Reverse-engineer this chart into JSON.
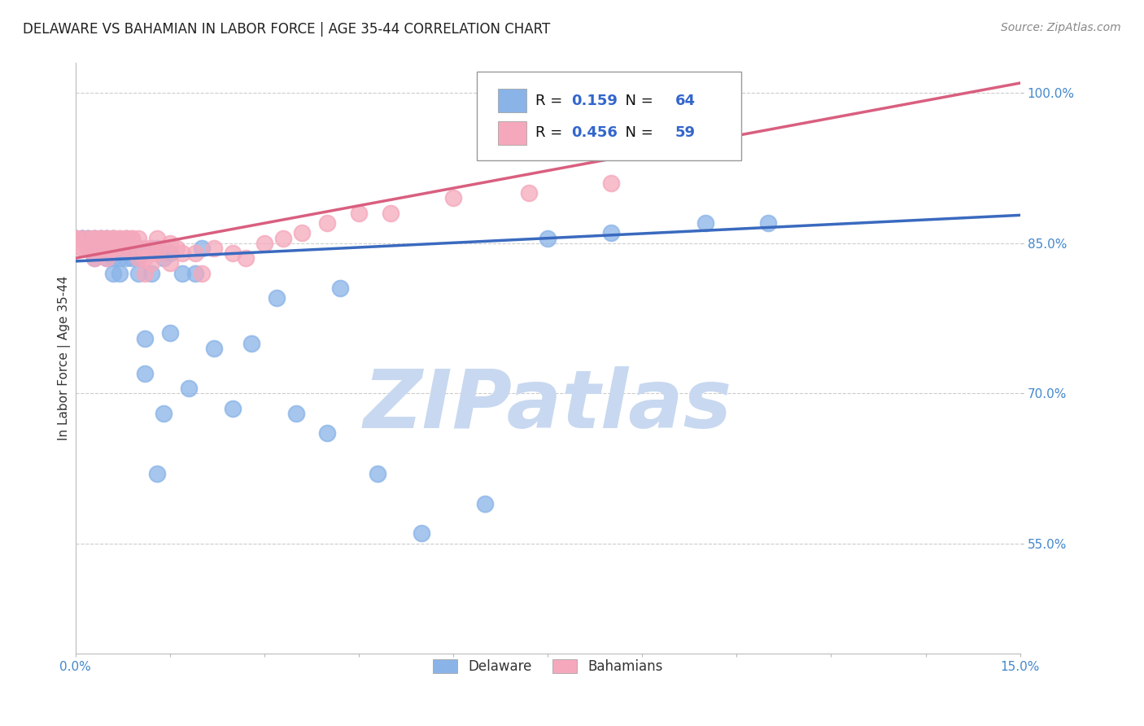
{
  "title": "DELAWARE VS BAHAMIAN IN LABOR FORCE | AGE 35-44 CORRELATION CHART",
  "source_text": "Source: ZipAtlas.com",
  "ylabel": "In Labor Force | Age 35-44",
  "xlim": [
    0.0,
    0.15
  ],
  "ylim": [
    0.44,
    1.03
  ],
  "xticks": [
    0.0,
    0.015,
    0.03,
    0.045,
    0.06,
    0.075,
    0.09,
    0.105,
    0.12,
    0.135,
    0.15
  ],
  "xticklabels": [
    "0.0%",
    "",
    "",
    "",
    "",
    "",
    "",
    "",
    "",
    "",
    "15.0%"
  ],
  "yticks": [
    0.55,
    0.7,
    0.85,
    1.0
  ],
  "yticklabels": [
    "55.0%",
    "70.0%",
    "85.0%",
    "100.0%"
  ],
  "delaware_color": "#8ab4e8",
  "bahamians_color": "#f5a8bc",
  "delaware_line_color": "#3a6abf",
  "bahamians_line_color": "#d95f7f",
  "R_delaware": 0.159,
  "N_delaware": 64,
  "R_bahamians": 0.456,
  "N_bahamians": 59,
  "watermark": "ZIPatlas",
  "watermark_color": "#c8d8f0",
  "background_color": "#ffffff",
  "grid_color": "#cccccc",
  "del_line_x0": 0.0,
  "del_line_y0": 0.832,
  "del_line_x1": 0.15,
  "del_line_y1": 0.878,
  "bah_line_x0": 0.0,
  "bah_line_y0": 0.835,
  "bah_line_x1": 0.15,
  "bah_line_y1": 1.01,
  "delaware_scatter_x": [
    0.0,
    0.0,
    0.001,
    0.001,
    0.001,
    0.002,
    0.002,
    0.002,
    0.003,
    0.003,
    0.003,
    0.003,
    0.004,
    0.004,
    0.004,
    0.004,
    0.005,
    0.005,
    0.005,
    0.005,
    0.006,
    0.006,
    0.006,
    0.006,
    0.006,
    0.007,
    0.007,
    0.007,
    0.008,
    0.008,
    0.008,
    0.009,
    0.009,
    0.01,
    0.01,
    0.01,
    0.011,
    0.011,
    0.012,
    0.012,
    0.013,
    0.013,
    0.014,
    0.014,
    0.015,
    0.015,
    0.017,
    0.018,
    0.019,
    0.02,
    0.022,
    0.025,
    0.028,
    0.032,
    0.035,
    0.04,
    0.042,
    0.048,
    0.055,
    0.065,
    0.075,
    0.085,
    0.1,
    0.11
  ],
  "delaware_scatter_y": [
    0.855,
    0.855,
    0.855,
    0.855,
    0.855,
    0.855,
    0.845,
    0.855,
    0.855,
    0.855,
    0.845,
    0.835,
    0.855,
    0.855,
    0.845,
    0.845,
    0.855,
    0.845,
    0.855,
    0.835,
    0.855,
    0.855,
    0.845,
    0.835,
    0.82,
    0.845,
    0.835,
    0.82,
    0.855,
    0.845,
    0.835,
    0.845,
    0.835,
    0.845,
    0.835,
    0.82,
    0.755,
    0.72,
    0.845,
    0.82,
    0.845,
    0.62,
    0.835,
    0.68,
    0.84,
    0.76,
    0.82,
    0.705,
    0.82,
    0.845,
    0.745,
    0.685,
    0.75,
    0.795,
    0.68,
    0.66,
    0.805,
    0.62,
    0.56,
    0.59,
    0.855,
    0.86,
    0.87,
    0.87
  ],
  "bahamians_scatter_x": [
    0.0,
    0.0,
    0.001,
    0.001,
    0.001,
    0.002,
    0.002,
    0.003,
    0.003,
    0.003,
    0.003,
    0.004,
    0.004,
    0.004,
    0.005,
    0.005,
    0.005,
    0.005,
    0.006,
    0.006,
    0.006,
    0.006,
    0.007,
    0.007,
    0.007,
    0.008,
    0.008,
    0.008,
    0.009,
    0.009,
    0.009,
    0.01,
    0.01,
    0.011,
    0.011,
    0.011,
    0.012,
    0.012,
    0.013,
    0.013,
    0.014,
    0.015,
    0.015,
    0.016,
    0.017,
    0.019,
    0.02,
    0.022,
    0.025,
    0.027,
    0.03,
    0.033,
    0.036,
    0.04,
    0.045,
    0.05,
    0.06,
    0.072,
    0.085
  ],
  "bahamians_scatter_y": [
    0.855,
    0.855,
    0.855,
    0.845,
    0.845,
    0.855,
    0.845,
    0.855,
    0.855,
    0.845,
    0.835,
    0.855,
    0.855,
    0.845,
    0.855,
    0.855,
    0.845,
    0.835,
    0.855,
    0.855,
    0.845,
    0.845,
    0.855,
    0.855,
    0.845,
    0.855,
    0.855,
    0.845,
    0.855,
    0.855,
    0.845,
    0.855,
    0.835,
    0.845,
    0.835,
    0.82,
    0.845,
    0.83,
    0.855,
    0.84,
    0.845,
    0.85,
    0.83,
    0.845,
    0.84,
    0.84,
    0.82,
    0.845,
    0.84,
    0.835,
    0.85,
    0.855,
    0.86,
    0.87,
    0.88,
    0.88,
    0.895,
    0.9,
    0.91
  ],
  "title_fontsize": 12,
  "axis_label_fontsize": 11,
  "tick_fontsize": 11,
  "legend_fontsize": 13,
  "source_fontsize": 10
}
